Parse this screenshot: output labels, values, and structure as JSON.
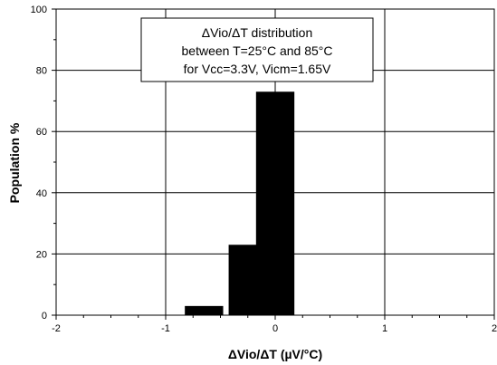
{
  "chart_data": {
    "type": "bar",
    "x_centers": [
      -0.65,
      -0.25,
      0.0
    ],
    "values": [
      3,
      23,
      73
    ],
    "xlabel": "ΔVio/ΔT (µV/°C)",
    "ylabel": "Population %",
    "xlim": [
      -2,
      2
    ],
    "ylim": [
      0,
      100
    ],
    "x_ticks": [
      "-2",
      "-1",
      "0",
      "1",
      "2"
    ],
    "y_ticks": [
      "0",
      "20",
      "40",
      "60",
      "80",
      "100"
    ],
    "grid": true,
    "bar_color": "#000000",
    "annotation": {
      "lines": [
        "ΔVio/ΔT distribution",
        "between T=25°C and 85°C",
        "for Vcc=3.3V, Vicm=1.65V"
      ],
      "placement": "top-center"
    }
  }
}
